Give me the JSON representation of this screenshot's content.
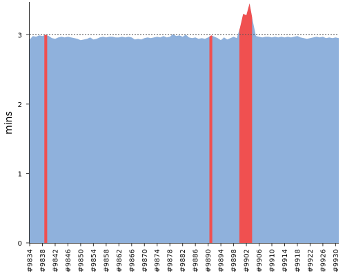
{
  "chart_data": {
    "type": "area",
    "ylabel": "mins",
    "xlabel": "",
    "ylim": [
      0,
      3.45
    ],
    "yticks": [
      0,
      1,
      2,
      3
    ],
    "reference_line": 3,
    "grid": "horizontal dashed",
    "x_start": 9834,
    "x_end": 9931,
    "xtick_labels": [
      "#9834",
      "#9838",
      "#9842",
      "#9846",
      "#9850",
      "#9854",
      "#9858",
      "#9862",
      "#9866",
      "#9870",
      "#9874",
      "#9878",
      "#9882",
      "#9886",
      "#9890",
      "#9894",
      "#9898",
      "#9902",
      "#9906",
      "#9910",
      "#9914",
      "#9918",
      "#9922",
      "#9926",
      "#9930"
    ],
    "series": [
      {
        "color": "#8fb1dc",
        "points": [
          [
            9834,
            2.93
          ],
          [
            9835,
            2.98
          ],
          [
            9836,
            2.97
          ],
          [
            9837,
            2.99
          ],
          [
            9838,
            2.98
          ],
          [
            9839,
            3.0
          ],
          [
            9840,
            2.98
          ],
          [
            9841,
            2.95
          ],
          [
            9842,
            2.94
          ],
          [
            9843,
            2.96
          ],
          [
            9844,
            2.97
          ],
          [
            9845,
            2.96
          ],
          [
            9846,
            2.97
          ],
          [
            9847,
            2.96
          ],
          [
            9848,
            2.95
          ],
          [
            9849,
            2.94
          ],
          [
            9850,
            2.92
          ],
          [
            9851,
            2.93
          ],
          [
            9852,
            2.94
          ],
          [
            9853,
            2.96
          ],
          [
            9854,
            2.93
          ],
          [
            9855,
            2.94
          ],
          [
            9856,
            2.96
          ],
          [
            9857,
            2.97
          ],
          [
            9858,
            2.96
          ],
          [
            9859,
            2.97
          ],
          [
            9860,
            2.97
          ],
          [
            9861,
            2.96
          ],
          [
            9862,
            2.96
          ],
          [
            9863,
            2.97
          ],
          [
            9864,
            2.96
          ],
          [
            9865,
            2.97
          ],
          [
            9866,
            2.96
          ],
          [
            9867,
            2.93
          ],
          [
            9868,
            2.94
          ],
          [
            9869,
            2.93
          ],
          [
            9870,
            2.95
          ],
          [
            9871,
            2.96
          ],
          [
            9872,
            2.95
          ],
          [
            9873,
            2.96
          ],
          [
            9874,
            2.97
          ],
          [
            9875,
            2.96
          ],
          [
            9876,
            2.98
          ],
          [
            9877,
            2.96
          ],
          [
            9878,
            2.97
          ],
          [
            9879,
            3.01
          ],
          [
            9880,
            2.98
          ],
          [
            9881,
            2.99
          ],
          [
            9882,
            2.97
          ],
          [
            9883,
            3.0
          ],
          [
            9884,
            2.96
          ],
          [
            9885,
            2.95
          ],
          [
            9886,
            2.96
          ],
          [
            9887,
            2.94
          ],
          [
            9888,
            2.95
          ],
          [
            9889,
            2.94
          ],
          [
            9890,
            2.96
          ],
          [
            9891,
            2.99
          ],
          [
            9892,
            2.97
          ],
          [
            9893,
            2.95
          ],
          [
            9894,
            2.92
          ],
          [
            9895,
            2.96
          ],
          [
            9896,
            2.93
          ],
          [
            9897,
            2.95
          ],
          [
            9898,
            2.97
          ],
          [
            9899,
            2.95
          ],
          [
            9900,
            3.1
          ],
          [
            9901,
            3.3
          ],
          [
            9902,
            3.28
          ],
          [
            9903,
            3.45
          ],
          [
            9904,
            3.2
          ],
          [
            9905,
            2.98
          ],
          [
            9906,
            2.97
          ],
          [
            9907,
            2.96
          ],
          [
            9908,
            2.97
          ],
          [
            9909,
            2.97
          ],
          [
            9910,
            2.96
          ],
          [
            9911,
            2.97
          ],
          [
            9912,
            2.96
          ],
          [
            9913,
            2.97
          ],
          [
            9914,
            2.96
          ],
          [
            9915,
            2.97
          ],
          [
            9916,
            2.96
          ],
          [
            9917,
            2.97
          ],
          [
            9918,
            2.98
          ],
          [
            9919,
            2.96
          ],
          [
            9920,
            2.95
          ],
          [
            9921,
            2.94
          ],
          [
            9922,
            2.95
          ],
          [
            9923,
            2.96
          ],
          [
            9924,
            2.97
          ],
          [
            9925,
            2.96
          ],
          [
            9926,
            2.97
          ],
          [
            9927,
            2.95
          ],
          [
            9928,
            2.96
          ],
          [
            9929,
            2.95
          ],
          [
            9930,
            2.96
          ],
          [
            9931,
            2.95
          ]
        ]
      }
    ],
    "highlight_color": "#f05050",
    "highlights": [
      {
        "x": [
          9838.6,
          9839.5
        ]
      },
      {
        "x": [
          9890.4,
          9891.3
        ]
      },
      {
        "x": [
          9899.8,
          9903.8
        ]
      }
    ]
  }
}
